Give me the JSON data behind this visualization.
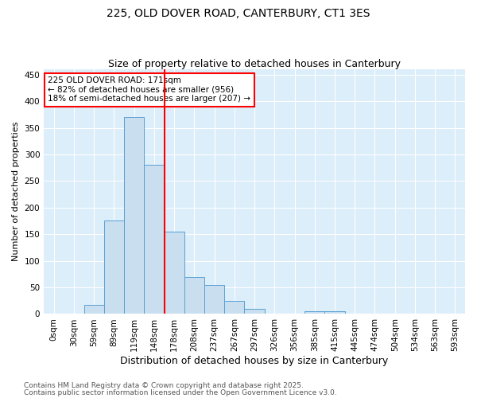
{
  "title1": "225, OLD DOVER ROAD, CANTERBURY, CT1 3ES",
  "title2": "Size of property relative to detached houses in Canterbury",
  "xlabel": "Distribution of detached houses by size in Canterbury",
  "ylabel": "Number of detached properties",
  "bins": [
    "0sqm",
    "30sqm",
    "59sqm",
    "89sqm",
    "119sqm",
    "148sqm",
    "178sqm",
    "208sqm",
    "237sqm",
    "267sqm",
    "297sqm",
    "326sqm",
    "356sqm",
    "385sqm",
    "415sqm",
    "445sqm",
    "474sqm",
    "504sqm",
    "534sqm",
    "563sqm",
    "593sqm"
  ],
  "values": [
    0,
    0,
    17,
    175,
    370,
    280,
    155,
    70,
    54,
    24,
    9,
    1,
    0,
    5,
    5,
    0,
    0,
    0,
    0,
    0,
    0
  ],
  "bar_color": "#c9dfef",
  "bar_edge_color": "#5a9fd4",
  "vline_bin": 6,
  "vline_color": "red",
  "annotation_title": "225 OLD DOVER ROAD: 171sqm",
  "annotation_line1": "← 82% of detached houses are smaller (956)",
  "annotation_line2": "18% of semi-detached houses are larger (207) →",
  "annotation_box_color": "white",
  "annotation_box_edge_color": "red",
  "ylim": [
    0,
    460
  ],
  "yticks": [
    0,
    50,
    100,
    150,
    200,
    250,
    300,
    350,
    400,
    450
  ],
  "bg_color": "#dceefa",
  "footer1": "Contains HM Land Registry data © Crown copyright and database right 2025.",
  "footer2": "Contains public sector information licensed under the Open Government Licence v3.0.",
  "title1_fontsize": 10,
  "title2_fontsize": 9,
  "xlabel_fontsize": 9,
  "ylabel_fontsize": 8,
  "tick_fontsize": 7.5,
  "annotation_fontsize": 7.5,
  "footer_fontsize": 6.5
}
